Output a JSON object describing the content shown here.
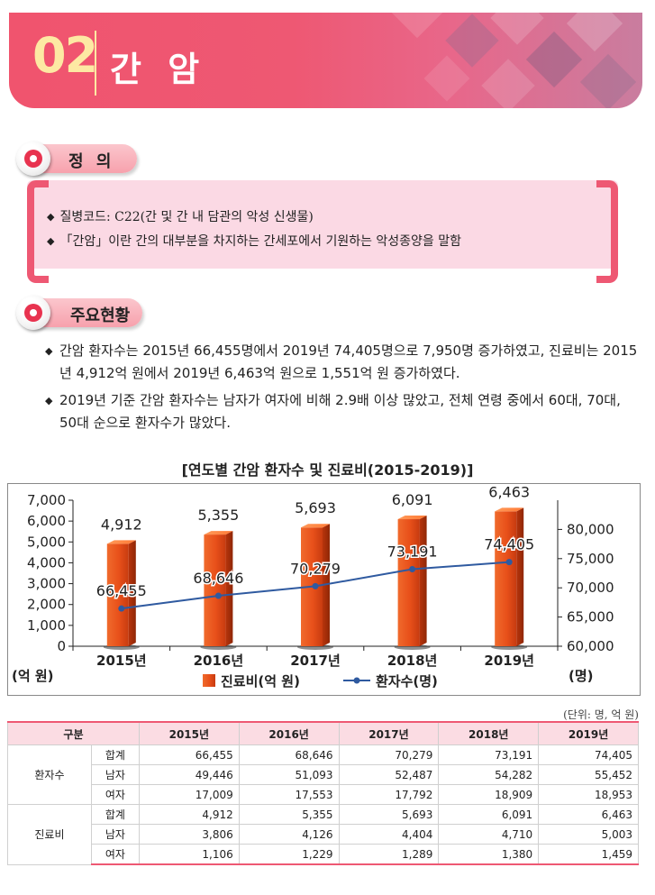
{
  "header": {
    "number": "02",
    "title": "간 암"
  },
  "definition": {
    "heading": "정  의",
    "items": [
      "질병코드: C22(간 및 간 내 담관의 악성 신생물)",
      "「간암」이란 간의 대부분을 차지하는 간세포에서 기원하는 악성종양을 말함"
    ]
  },
  "status": {
    "heading": "주요현황",
    "items": [
      "간암 환자수는 2015년 66,455명에서 2019년 74,405명으로 7,950명 증가하였고, 진료비는 2015년 4,912억 원에서 2019년 6,463억 원으로 1,551억 원 증가하였다.",
      "2019년 기준 간암 환자수는 남자가 여자에 비해 2.9배 이상 많았고, 전체 연령 중에서 60대, 70대, 50대 순으로 환자수가 많았다."
    ]
  },
  "colors": {
    "accent": "#ee5873",
    "bar": "#ee5a1e",
    "line": "#2f5aa0"
  },
  "chart_data": {
    "type": "bar+line",
    "title": "[연도별 간암 환자수 및 진료비(2015-2019)]",
    "categories": [
      "2015년",
      "2016년",
      "2017년",
      "2018년",
      "2019년"
    ],
    "series": [
      {
        "name": "진료비(억 원)",
        "type": "bar",
        "axis": "left",
        "values": [
          4912,
          5355,
          5693,
          6091,
          6463
        ],
        "labels": [
          "4,912",
          "5,355",
          "5,693",
          "6,091",
          "6,463"
        ]
      },
      {
        "name": "환자수(명)",
        "type": "line",
        "axis": "right",
        "values": [
          66455,
          68646,
          70279,
          73191,
          74405
        ],
        "labels": [
          "66,455",
          "68,646",
          "70,279",
          "73,191",
          "74,405"
        ]
      }
    ],
    "left_axis": {
      "label": "(억 원)",
      "min": 0,
      "max": 7000,
      "ticks": [
        0,
        1000,
        2000,
        3000,
        4000,
        5000,
        6000,
        7000
      ],
      "tick_labels": [
        "0",
        "1,000",
        "2,000",
        "3,000",
        "4,000",
        "5,000",
        "6,000",
        "7,000"
      ]
    },
    "right_axis": {
      "label": "(명)",
      "min": 60000,
      "max": 85000,
      "ticks": [
        60000,
        65000,
        70000,
        75000,
        80000
      ],
      "tick_labels": [
        "60,000",
        "65,000",
        "70,000",
        "75,000",
        "80,000"
      ]
    },
    "legend": [
      "진료비(억 원)",
      "환자수(명)"
    ]
  },
  "table": {
    "unit": "(단위: 명, 억 원)",
    "header": [
      "구분",
      "2015년",
      "2016년",
      "2017년",
      "2018년",
      "2019년"
    ],
    "groups": [
      {
        "name": "환자수",
        "rows": [
          {
            "sub": "합계",
            "values": [
              "66,455",
              "68,646",
              "70,279",
              "73,191",
              "74,405"
            ]
          },
          {
            "sub": "남자",
            "values": [
              "49,446",
              "51,093",
              "52,487",
              "54,282",
              "55,452"
            ]
          },
          {
            "sub": "여자",
            "values": [
              "17,009",
              "17,553",
              "17,792",
              "18,909",
              "18,953"
            ]
          }
        ]
      },
      {
        "name": "진료비",
        "rows": [
          {
            "sub": "합계",
            "values": [
              "4,912",
              "5,355",
              "5,693",
              "6,091",
              "6,463"
            ]
          },
          {
            "sub": "남자",
            "values": [
              "3,806",
              "4,126",
              "4,404",
              "4,710",
              "5,003"
            ]
          },
          {
            "sub": "여자",
            "values": [
              "1,106",
              "1,229",
              "1,289",
              "1,380",
              "1,459"
            ]
          }
        ]
      }
    ]
  }
}
